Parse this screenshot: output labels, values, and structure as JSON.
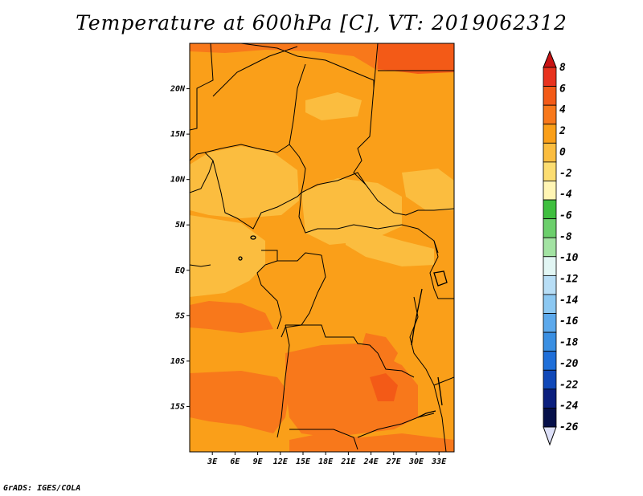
{
  "title": "Temperature at 600hPa [C], VT: 2019062312",
  "footer": "GrADS: IGES/COLA",
  "map": {
    "lon_range": [
      0,
      35
    ],
    "lat_range": [
      -20,
      25
    ],
    "lat_ticks": [
      {
        "value": 20,
        "label": "20N"
      },
      {
        "value": 15,
        "label": "15N"
      },
      {
        "value": 10,
        "label": "10N"
      },
      {
        "value": 5,
        "label": "5N"
      },
      {
        "value": 0,
        "label": "EQ"
      },
      {
        "value": -5,
        "label": "5S"
      },
      {
        "value": -10,
        "label": "10S"
      },
      {
        "value": -15,
        "label": "15S"
      }
    ],
    "lon_ticks": [
      {
        "value": 3,
        "label": "3E"
      },
      {
        "value": 6,
        "label": "6E"
      },
      {
        "value": 9,
        "label": "9E"
      },
      {
        "value": 12,
        "label": "12E"
      },
      {
        "value": 15,
        "label": "15E"
      },
      {
        "value": 18,
        "label": "18E"
      },
      {
        "value": 21,
        "label": "21E"
      },
      {
        "value": 24,
        "label": "24E"
      },
      {
        "value": 27,
        "label": "27E"
      },
      {
        "value": 30,
        "label": "30E"
      },
      {
        "value": 33,
        "label": "33E"
      }
    ]
  },
  "colorbar": {
    "levels": [
      "8",
      "6",
      "4",
      "2",
      "0",
      "-2",
      "-4",
      "-6",
      "-8",
      "-10",
      "-12",
      "-14",
      "-16",
      "-18",
      "-20",
      "-22",
      "-24",
      "-26"
    ],
    "colors": [
      "#e8321e",
      "#f35a17",
      "#f8781b",
      "#fa9f19",
      "#fbbd3f",
      "#fcdd71",
      "#fff5b4",
      "#3fbf3f",
      "#6ccf6c",
      "#a3e3a3",
      "#e2f6f4",
      "#b8def6",
      "#8cc8f2",
      "#5ca9ec",
      "#3a8fe2",
      "#1f6fd9",
      "#1048b8",
      "#0b1f7e",
      "#06104a"
    ],
    "top_arrow_color": "#c81414",
    "bottom_arrow_color": "#dde0f8"
  }
}
